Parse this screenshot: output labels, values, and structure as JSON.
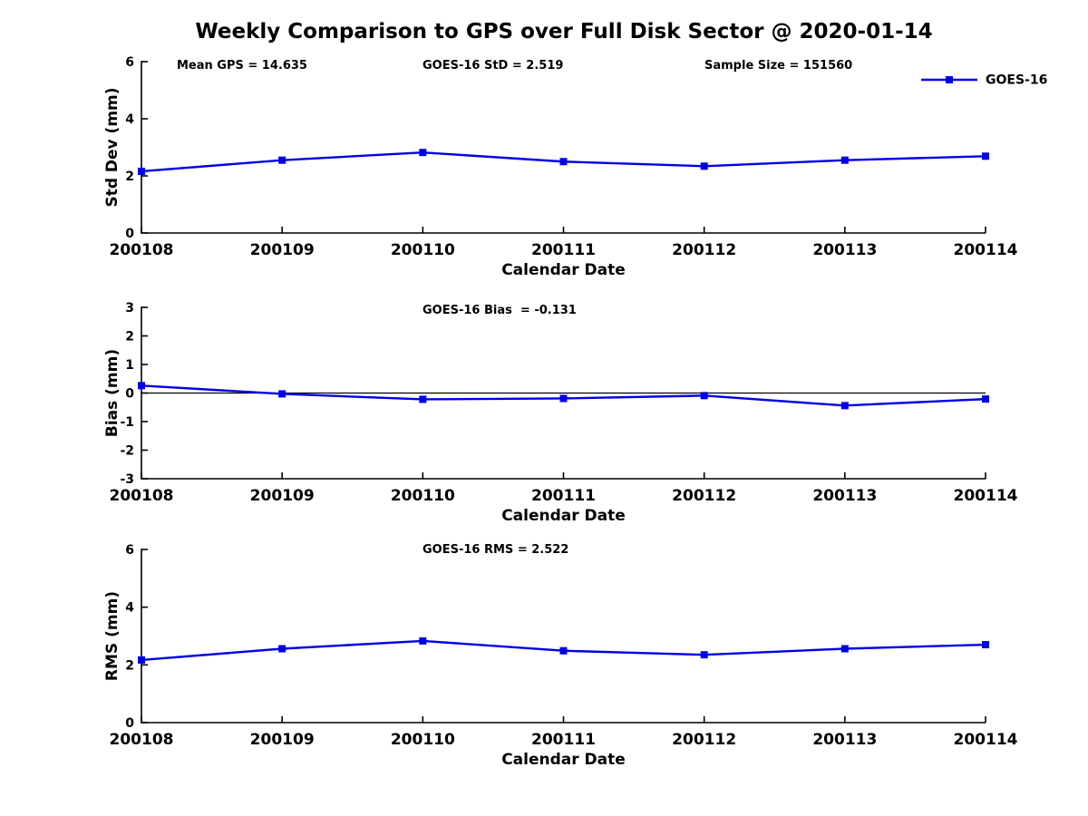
{
  "figure": {
    "title": "Weekly Comparison to GPS over Full Disk Sector @ 2020-01-14"
  },
  "colors": {
    "series": "#0000e6",
    "axis": "#000000",
    "background": "#ffffff"
  },
  "legend": {
    "label": "GOES-16",
    "position": "top-right"
  },
  "chart_data": [
    {
      "type": "line",
      "id": "stddev",
      "categories": [
        "200108",
        "200109",
        "200110",
        "200111",
        "200112",
        "200113",
        "200114"
      ],
      "series": [
        {
          "name": "GOES-16",
          "marker": "square",
          "values": [
            2.16,
            2.55,
            2.82,
            2.5,
            2.34,
            2.55,
            2.69
          ]
        }
      ],
      "xlabel": "Calendar Date",
      "ylabel": "Std Dev (mm)",
      "ylim": [
        0,
        6
      ],
      "yticks": [
        0,
        2,
        4,
        6
      ],
      "grid": false,
      "legend_visible": true,
      "zero_line": false,
      "annotations": [
        {
          "text": "Mean GPS = 14.635",
          "x": 195
        },
        {
          "text": "GOES-16 StD = 2.519",
          "x": 466
        },
        {
          "text": "Sample Size = 151560",
          "x": 777
        }
      ]
    },
    {
      "type": "line",
      "id": "bias",
      "categories": [
        "200108",
        "200109",
        "200110",
        "200111",
        "200112",
        "200113",
        "200114"
      ],
      "series": [
        {
          "name": "GOES-16",
          "marker": "square",
          "values": [
            0.26,
            -0.03,
            -0.22,
            -0.19,
            -0.09,
            -0.44,
            -0.21
          ]
        }
      ],
      "xlabel": "Calendar Date",
      "ylabel": "Bias (mm)",
      "ylim": [
        -3,
        3
      ],
      "yticks": [
        3,
        2,
        1,
        0,
        -1,
        -2,
        -3
      ],
      "grid": false,
      "legend_visible": false,
      "zero_line": true,
      "annotations": [
        {
          "text": "GOES-16 Bias  = -0.131",
          "x": 466
        }
      ]
    },
    {
      "type": "line",
      "id": "rms",
      "categories": [
        "200108",
        "200109",
        "200110",
        "200111",
        "200112",
        "200113",
        "200114"
      ],
      "series": [
        {
          "name": "GOES-16",
          "marker": "square",
          "values": [
            2.17,
            2.56,
            2.83,
            2.49,
            2.35,
            2.56,
            2.7
          ]
        }
      ],
      "xlabel": "Calendar Date",
      "ylabel": "RMS (mm)",
      "ylim": [
        0,
        6
      ],
      "yticks": [
        0,
        2,
        4,
        6
      ],
      "grid": false,
      "legend_visible": false,
      "zero_line": false,
      "annotations": [
        {
          "text": "GOES-16 RMS = 2.522",
          "x": 466
        }
      ]
    }
  ]
}
